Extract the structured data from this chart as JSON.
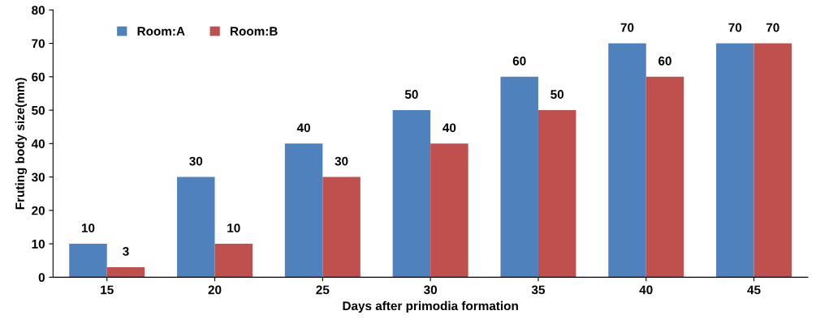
{
  "chart_data": {
    "type": "bar",
    "xlabel": "Days after primodia formation",
    "ylabel": "Fruting body size(mm)",
    "categories": [
      "15",
      "20",
      "25",
      "30",
      "35",
      "40",
      "45"
    ],
    "series": [
      {
        "name": "Room:A",
        "color": "#4f81bd",
        "values": [
          10,
          30,
          40,
          50,
          60,
          70,
          70
        ]
      },
      {
        "name": "Room:B",
        "color": "#c0504d",
        "values": [
          3,
          10,
          30,
          40,
          50,
          60,
          70
        ]
      }
    ],
    "ylim": [
      0,
      80
    ],
    "yticks": [
      0,
      10,
      20,
      30,
      40,
      50,
      60,
      70,
      80
    ],
    "data_labels": true,
    "legend": "top left",
    "grid": false
  }
}
